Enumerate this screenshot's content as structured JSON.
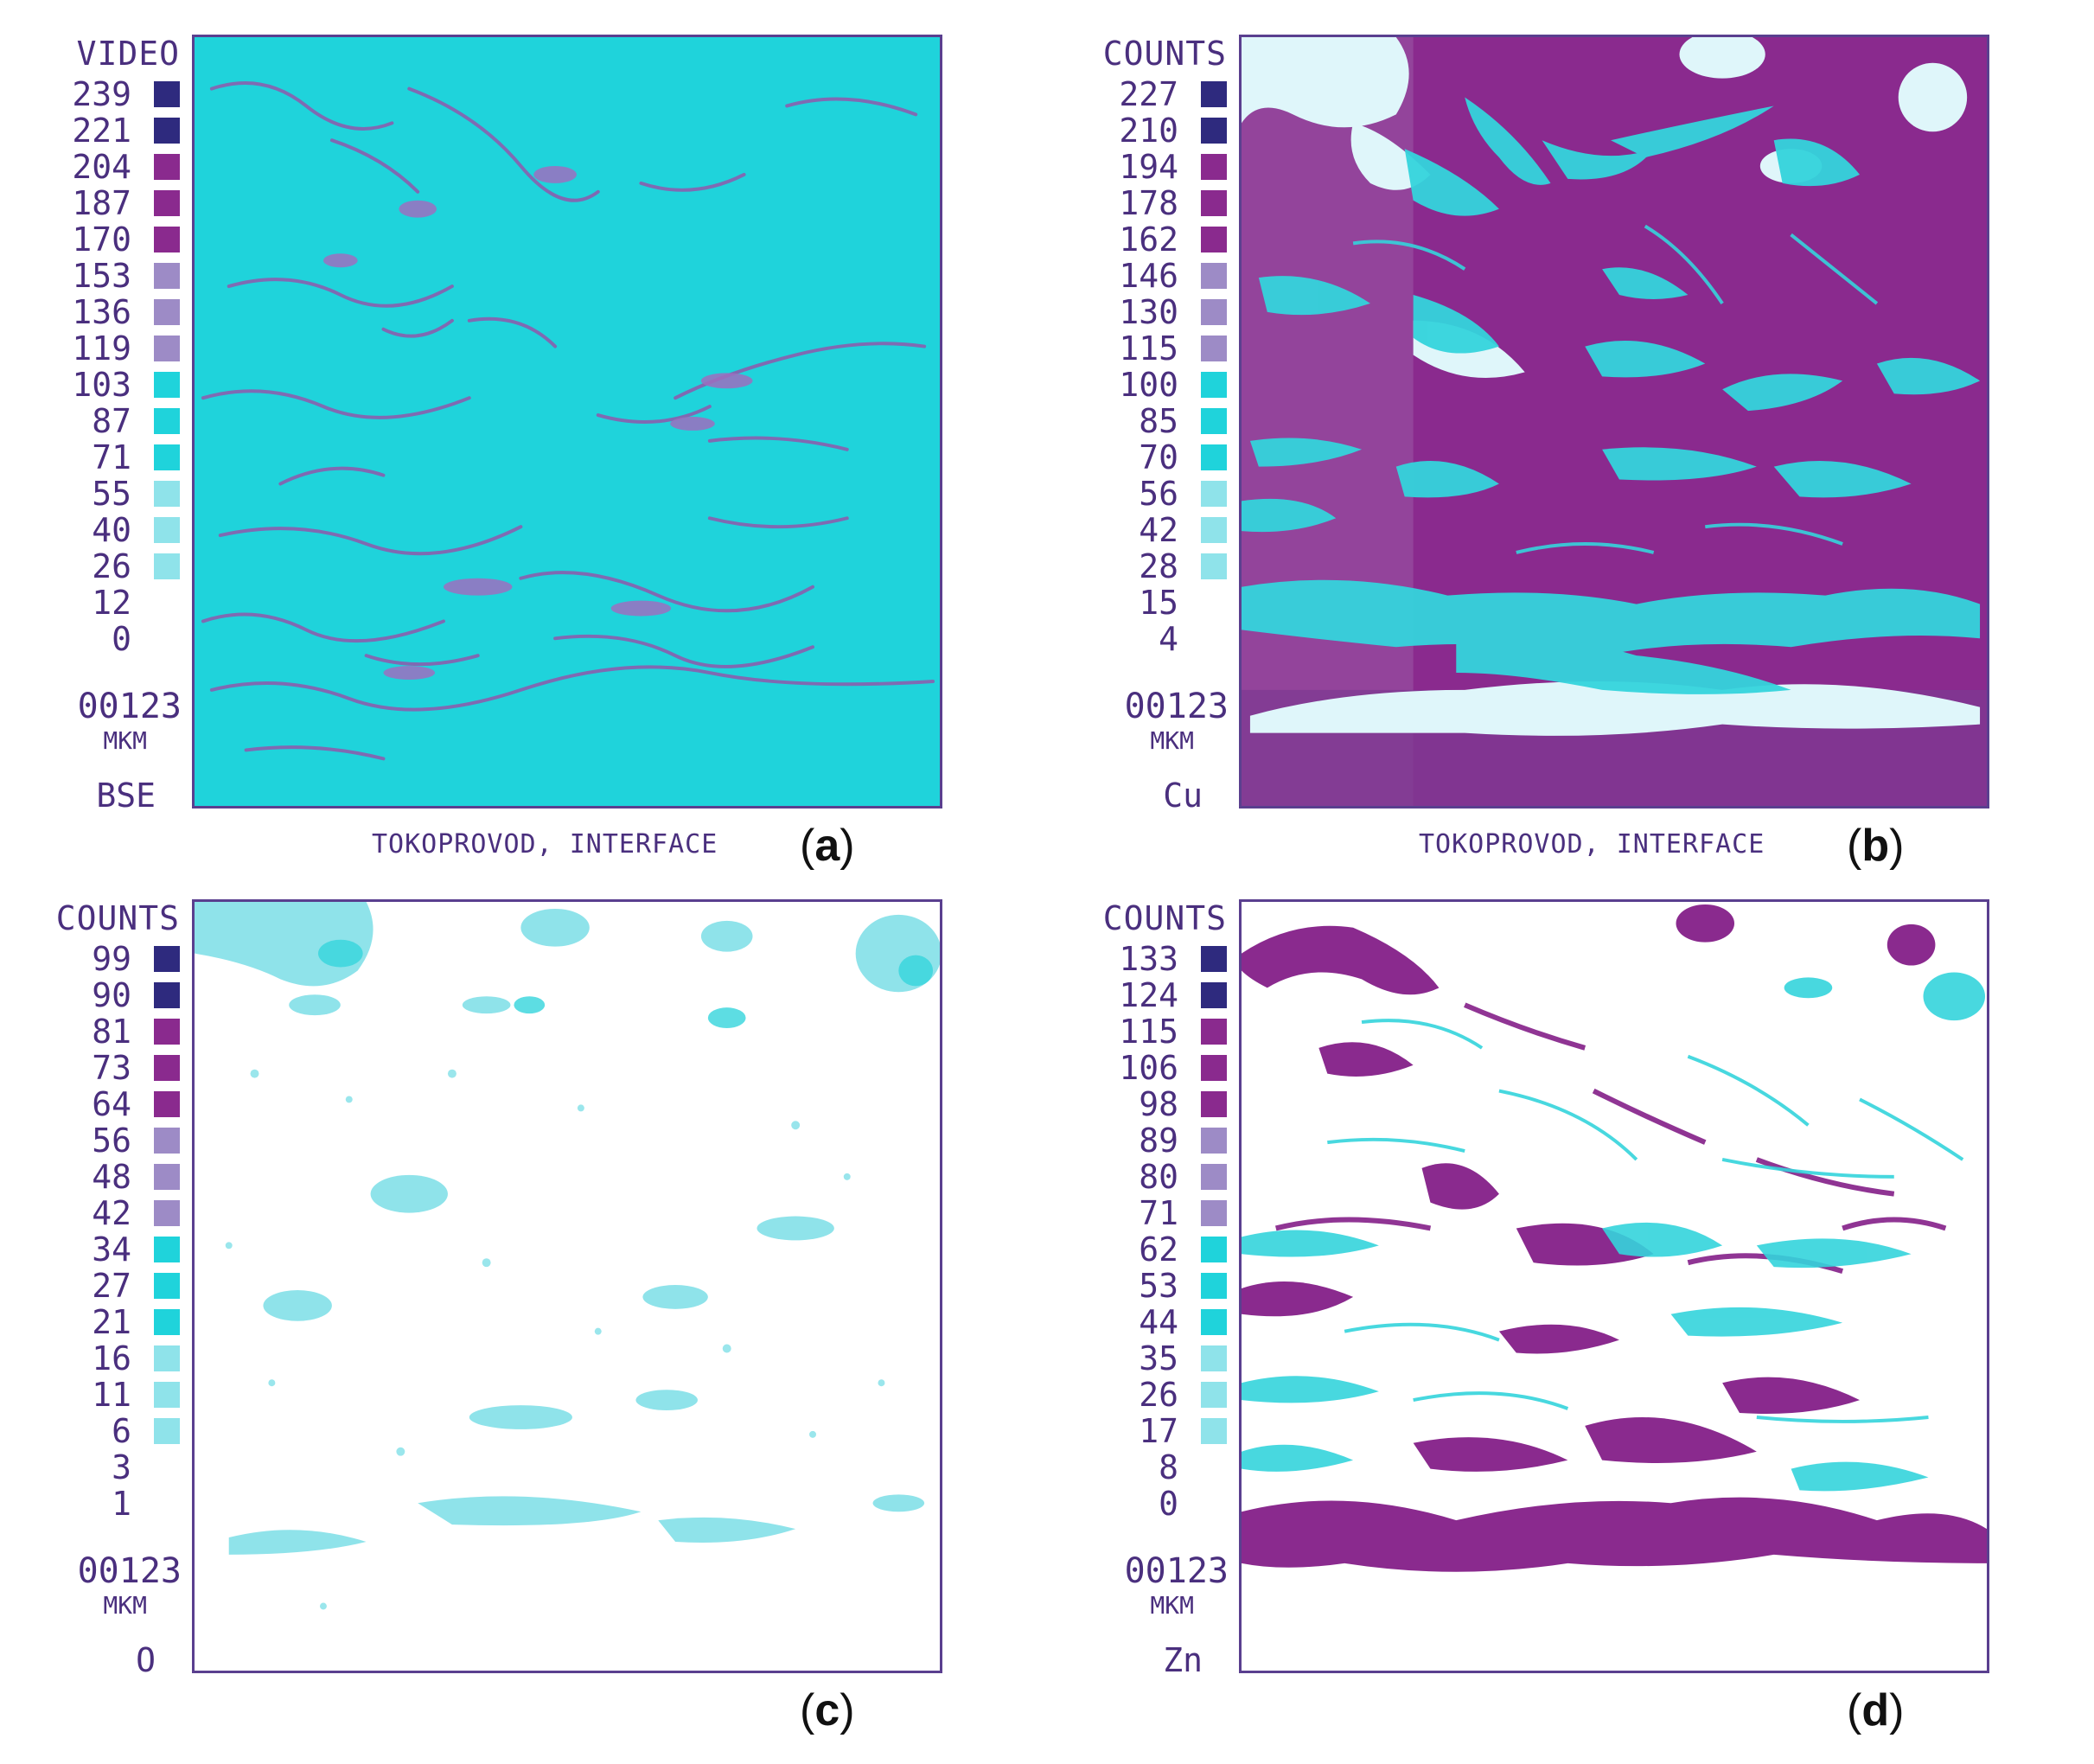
{
  "colors": {
    "navy": "#2e2a7e",
    "magenta": "#8a2a8e",
    "lavender": "#9d8bc6",
    "cyan": "#1fd3db",
    "light_cyan": "#8fe3ea",
    "frame": "#5a3f8f",
    "text": "#4a2f7e"
  },
  "panels": [
    {
      "scale_title": "VIDEO",
      "scale_values": [
        "239",
        "221",
        "204",
        "187",
        "170",
        "153",
        "136",
        "119",
        "103",
        "87",
        "71",
        "55",
        "40",
        "26",
        "12",
        "0"
      ],
      "scale_length": "00123",
      "scale_unit": "MKM",
      "element": "BSE",
      "caption": "TOKOPROVOD, INTERFACE",
      "label_open": "(",
      "label_letter": "a",
      "label_close": ")"
    },
    {
      "scale_title": "COUNTS",
      "scale_values": [
        "227",
        "210",
        "194",
        "178",
        "162",
        "146",
        "130",
        "115",
        "100",
        "85",
        "70",
        "56",
        "42",
        "28",
        "15",
        "4"
      ],
      "scale_length": "00123",
      "scale_unit": "MKM",
      "element": "Cu",
      "caption": "TOKOPROVOD, INTERFACE",
      "label_open": "(",
      "label_letter": "b",
      "label_close": ")"
    },
    {
      "scale_title": "COUNTS",
      "scale_values": [
        "99",
        "90",
        "81",
        "73",
        "64",
        "56",
        "48",
        "42",
        "34",
        "27",
        "21",
        "16",
        "11",
        "6",
        "3",
        "1"
      ],
      "scale_length": "00123",
      "scale_unit": "MKM",
      "element": "O",
      "caption": "",
      "label_open": "(",
      "label_letter": "c",
      "label_close": ")"
    },
    {
      "scale_title": "COUNTS",
      "scale_values": [
        "133",
        "124",
        "115",
        "106",
        "98",
        "89",
        "80",
        "71",
        "62",
        "53",
        "44",
        "35",
        "26",
        "17",
        "8",
        "0"
      ],
      "scale_length": "00123",
      "scale_unit": "MKM",
      "element": "Zn",
      "caption": "",
      "label_open": "(",
      "label_letter": "d",
      "label_close": ")"
    }
  ]
}
